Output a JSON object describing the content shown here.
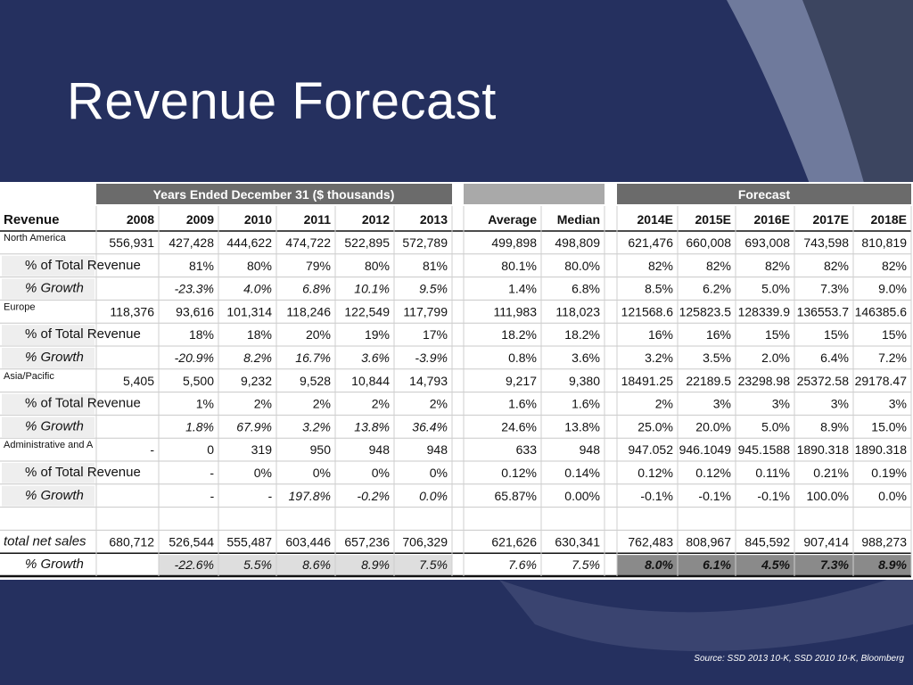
{
  "slide": {
    "title": "Revenue Forecast",
    "source": "Source: SSD 2013 10-K, SSD 2010 10-K, Bloomberg"
  },
  "colors": {
    "background": "#25305f",
    "accent_light": "#6f7a9c",
    "accent_dark": "#3c4560",
    "header_band": "#6b6b6b",
    "row_shade": "#efefef"
  },
  "table": {
    "group_headers": {
      "historical": "Years Ended December 31 ($ thousands)",
      "stats": "",
      "forecast": "Forecast"
    },
    "columns": [
      "Revenue",
      "2008",
      "2009",
      "2010",
      "2011",
      "2012",
      "2013",
      "Average",
      "Median",
      "2014E",
      "2015E",
      "2016E",
      "2017E",
      "2018E"
    ],
    "rows": [
      {
        "label": "North America",
        "style": "category",
        "cells": [
          "556,931",
          "427,428",
          "444,622",
          "474,722",
          "522,895",
          "572,789",
          "499,898",
          "498,809",
          "621,476",
          "660,008",
          "693,008",
          "743,598",
          "810,819"
        ]
      },
      {
        "label": "% of Total Revenue",
        "style": "pct",
        "cells": [
          "",
          "81%",
          "80%",
          "79%",
          "80%",
          "81%",
          "80.1%",
          "80.0%",
          "82%",
          "82%",
          "82%",
          "82%",
          "82%"
        ]
      },
      {
        "label": "% Growth",
        "style": "growth",
        "cells": [
          "",
          "-23.3%",
          "4.0%",
          "6.8%",
          "10.1%",
          "9.5%",
          "1.4%",
          "6.8%",
          "8.5%",
          "6.2%",
          "5.0%",
          "7.3%",
          "9.0%"
        ]
      },
      {
        "label": "Europe",
        "style": "category",
        "cells": [
          "118,376",
          "93,616",
          "101,314",
          "118,246",
          "122,549",
          "117,799",
          "111,983",
          "118,023",
          "121568.6",
          "125823.5",
          "128339.9",
          "136553.7",
          "146385.6"
        ]
      },
      {
        "label": "% of Total Revenue",
        "style": "pct",
        "cells": [
          "",
          "18%",
          "18%",
          "20%",
          "19%",
          "17%",
          "18.2%",
          "18.2%",
          "16%",
          "16%",
          "15%",
          "15%",
          "15%"
        ]
      },
      {
        "label": "% Growth",
        "style": "growth",
        "cells": [
          "",
          "-20.9%",
          "8.2%",
          "16.7%",
          "3.6%",
          "-3.9%",
          "0.8%",
          "3.6%",
          "3.2%",
          "3.5%",
          "2.0%",
          "6.4%",
          "7.2%"
        ]
      },
      {
        "label": "Asia/Pacific",
        "style": "category",
        "cells": [
          "5,405",
          "5,500",
          "9,232",
          "9,528",
          "10,844",
          "14,793",
          "9,217",
          "9,380",
          "18491.25",
          "22189.5",
          "23298.98",
          "25372.58",
          "29178.47"
        ]
      },
      {
        "label": "% of Total Revenue",
        "style": "pct",
        "cells": [
          "",
          "1%",
          "2%",
          "2%",
          "2%",
          "2%",
          "1.6%",
          "1.6%",
          "2%",
          "3%",
          "3%",
          "3%",
          "3%"
        ]
      },
      {
        "label": "% Growth",
        "style": "growth",
        "cells": [
          "",
          "1.8%",
          "67.9%",
          "3.2%",
          "13.8%",
          "36.4%",
          "24.6%",
          "13.8%",
          "25.0%",
          "20.0%",
          "5.0%",
          "8.9%",
          "15.0%"
        ]
      },
      {
        "label": "Administrative and A",
        "style": "category",
        "cells": [
          "-",
          "0",
          "319",
          "950",
          "948",
          "948",
          "633",
          "948",
          "947.052",
          "946.1049",
          "945.1588",
          "1890.318",
          "1890.318"
        ]
      },
      {
        "label": "% of Total Revenue",
        "style": "pct",
        "cells": [
          "",
          "-",
          "0%",
          "0%",
          "0%",
          "0%",
          "0.12%",
          "0.14%",
          "0.12%",
          "0.12%",
          "0.11%",
          "0.21%",
          "0.19%"
        ]
      },
      {
        "label": "% Growth",
        "style": "growth",
        "cells": [
          "",
          "-",
          "-",
          "197.8%",
          "-0.2%",
          "0.0%",
          "65.87%",
          "0.00%",
          "-0.1%",
          "-0.1%",
          "-0.1%",
          "100.0%",
          "0.0%"
        ]
      },
      {
        "label": "",
        "style": "blank",
        "cells": [
          "",
          "",
          "",
          "",
          "",
          "",
          "",
          "",
          "",
          "",
          "",
          "",
          ""
        ]
      },
      {
        "label": "total net sales",
        "style": "total",
        "cells": [
          "680,712",
          "526,544",
          "555,487",
          "603,446",
          "657,236",
          "706,329",
          "621,626",
          "630,341",
          "762,483",
          "808,967",
          "845,592",
          "907,414",
          "988,273"
        ]
      },
      {
        "label": "% Growth",
        "style": "totalgrowth",
        "cells": [
          "",
          "-22.6%",
          "5.5%",
          "8.6%",
          "8.9%",
          "7.5%",
          "7.6%",
          "7.5%",
          "8.0%",
          "6.1%",
          "4.5%",
          "7.3%",
          "8.9%"
        ]
      }
    ]
  }
}
